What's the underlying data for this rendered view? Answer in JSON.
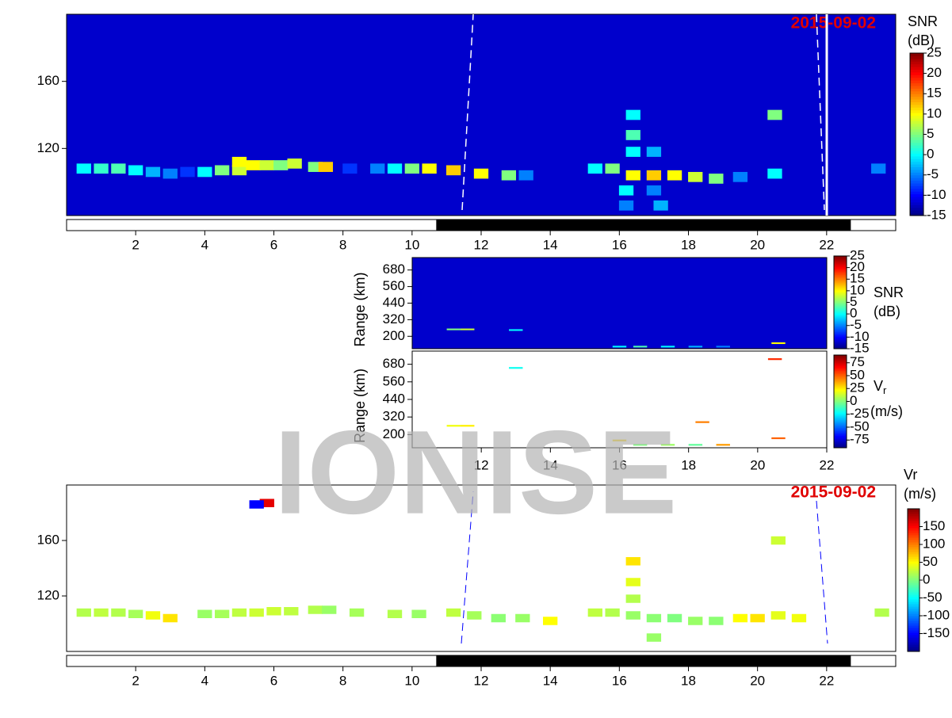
{
  "watermark": "IONISE",
  "chart_data": [
    {
      "type": "heatmap",
      "date_label": "2015-09-02",
      "colorbar_label": [
        "SNR",
        "(dB)"
      ],
      "xlim": [
        0,
        24
      ],
      "xticks": [
        2,
        4,
        6,
        8,
        10,
        12,
        14,
        16,
        18,
        20,
        22
      ],
      "ylim": [
        80,
        200
      ],
      "yticks": [
        120,
        160
      ],
      "night": [
        10.7,
        22.7
      ],
      "colormap": "jet",
      "clim": [
        -15,
        25
      ],
      "cticks": [
        -15,
        -10,
        -5,
        0,
        5,
        10,
        15,
        20,
        25
      ],
      "background": -12,
      "cells": {
        "x": [
          0.5,
          1,
          1.5,
          2,
          2.5,
          3,
          3.5,
          4,
          4.5,
          5,
          5,
          5.4,
          5.8,
          6.2,
          6.6,
          7.2,
          7.5,
          8.2,
          9,
          9.5,
          10,
          10.5,
          11.2,
          12,
          12.8,
          13.3,
          15.3,
          15.8,
          16.4,
          17,
          17.6,
          18.2,
          18.8,
          16.4,
          17,
          16.4,
          16.4,
          16.2,
          17,
          16.2,
          17.2,
          19.5,
          20.5,
          20.5,
          23.5
        ],
        "y": [
          108,
          108,
          108,
          107,
          106,
          105,
          106,
          106,
          107,
          107,
          112,
          110,
          110,
          110,
          111,
          109,
          109,
          108,
          108,
          108,
          108,
          108,
          107,
          105,
          104,
          104,
          108,
          108,
          104,
          104,
          104,
          103,
          102,
          118,
          118,
          128,
          140,
          95,
          95,
          86,
          86,
          103,
          105,
          140,
          108
        ],
        "values": [
          0,
          2,
          3,
          0,
          -3,
          -5,
          -8,
          0,
          5,
          8,
          10,
          10,
          8,
          5,
          8,
          5,
          12,
          -8,
          -5,
          0,
          5,
          10,
          12,
          10,
          5,
          -5,
          0,
          5,
          10,
          12,
          10,
          8,
          5,
          0,
          -3,
          3,
          0,
          0,
          -5,
          -5,
          -3,
          -5,
          0,
          5,
          -5
        ]
      }
    },
    {
      "type": "heatmap",
      "colorbar_label": [
        "SNR",
        "(dB)"
      ],
      "ylabel": "Range (km)",
      "xlim": [
        10,
        22
      ],
      "ylim": [
        110,
        770
      ],
      "yticks": [
        200,
        320,
        440,
        560,
        680
      ],
      "colormap": "jet",
      "clim": [
        -15,
        25
      ],
      "cticks": [
        -15,
        -10,
        -5,
        0,
        5,
        10,
        15,
        20,
        25
      ],
      "background": -12,
      "cells": {
        "x": [
          11.2,
          11.6,
          13,
          16,
          16.6,
          17.4,
          18.2,
          19,
          20.6
        ],
        "y": [
          250,
          250,
          245,
          125,
          125,
          125,
          125,
          125,
          150
        ],
        "values": [
          5,
          8,
          0,
          0,
          3,
          0,
          -3,
          -5,
          10
        ]
      }
    },
    {
      "type": "heatmap",
      "colorbar_label": [
        "V",
        "r",
        "(m/s)"
      ],
      "ylabel": "Range (km)",
      "xlim": [
        10,
        22
      ],
      "xticks": [
        12,
        14,
        16,
        18,
        20,
        22
      ],
      "ylim": [
        110,
        770
      ],
      "yticks": [
        200,
        320,
        440,
        560,
        680
      ],
      "colormap": "jet",
      "clim": [
        -90,
        90
      ],
      "cticks": [
        -75,
        -50,
        -25,
        0,
        25,
        50,
        75
      ],
      "cells": {
        "x": [
          11.2,
          11.6,
          13,
          16,
          16.6,
          17.4,
          18.2,
          19,
          20.6,
          20.5,
          18.4
        ],
        "y": [
          260,
          260,
          655,
          160,
          130,
          130,
          130,
          130,
          175,
          715,
          285
        ],
        "values": [
          20,
          25,
          -20,
          30,
          0,
          5,
          -5,
          40,
          50,
          60,
          45
        ]
      }
    },
    {
      "type": "heatmap",
      "date_label": "2015-09-02",
      "colorbar_label": [
        "Vr",
        "(m/s)"
      ],
      "xlim": [
        0,
        24
      ],
      "xticks": [
        2,
        4,
        6,
        8,
        10,
        12,
        14,
        16,
        18,
        20,
        22
      ],
      "ylim": [
        80,
        200
      ],
      "yticks": [
        120,
        160
      ],
      "night": [
        10.7,
        22.7
      ],
      "colormap": "jet",
      "clim": [
        -200,
        200
      ],
      "cticks": [
        -150,
        -100,
        -50,
        0,
        50,
        100,
        150
      ],
      "cells": {
        "x": [
          0.5,
          1,
          1.5,
          2,
          2.5,
          3,
          4,
          4.5,
          5,
          5.5,
          6,
          6.5,
          7.2,
          7.6,
          8.4,
          9.5,
          10.2,
          11.2,
          11.8,
          12.5,
          13.2,
          14,
          15.3,
          15.8,
          16.4,
          17,
          17.6,
          18.2,
          18.8,
          16.4,
          16.4,
          16.4,
          17,
          19.5,
          20,
          20.6,
          20.6,
          21.2,
          23.6,
          5.8,
          5.5
        ],
        "y": [
          108,
          108,
          108,
          107,
          106,
          104,
          107,
          107,
          108,
          108,
          109,
          109,
          110,
          110,
          108,
          107,
          107,
          108,
          106,
          104,
          104,
          102,
          108,
          108,
          106,
          104,
          104,
          102,
          102,
          118,
          130,
          145,
          90,
          104,
          104,
          106,
          160,
          104,
          108,
          187,
          186
        ],
        "values": [
          20,
          25,
          20,
          15,
          45,
          60,
          10,
          15,
          25,
          30,
          30,
          25,
          20,
          10,
          15,
          20,
          10,
          25,
          15,
          5,
          10,
          50,
          25,
          20,
          10,
          5,
          0,
          10,
          5,
          20,
          40,
          60,
          10,
          50,
          60,
          40,
          30,
          45,
          20,
          160,
          -150
        ]
      }
    }
  ]
}
